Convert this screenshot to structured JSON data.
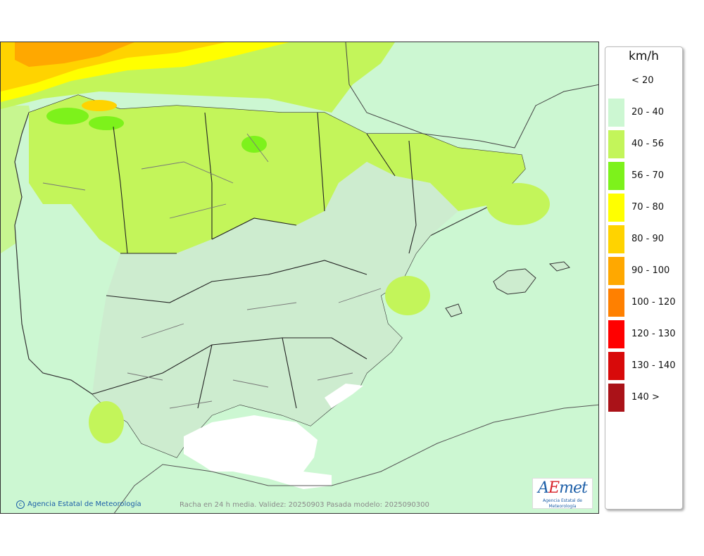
{
  "map": {
    "credit": "Agencia Estatal de Meteorología",
    "validity_text": "Racha en 24 h media. Validez: 20250903 Pasada modelo: 2025090300",
    "logo": {
      "a": "A",
      "e": "E",
      "m": "met",
      "sub": "Agencia Estatal de Meteorología"
    }
  },
  "legend": {
    "unit": "km/h",
    "classes": [
      {
        "label": "< 20",
        "color": "#ffffff"
      },
      {
        "label": "20 - 40",
        "color": "#ccf7d2"
      },
      {
        "label": "40 - 56",
        "color": "#c3f55a"
      },
      {
        "label": "56 - 70",
        "color": "#7df21b"
      },
      {
        "label": "70 - 80",
        "color": "#ffff00"
      },
      {
        "label": "80 - 90",
        "color": "#ffd300"
      },
      {
        "label": "90 - 100",
        "color": "#ffa800"
      },
      {
        "label": "100 - 120",
        "color": "#ff8000"
      },
      {
        "label": "120 - 130",
        "color": "#ff0000"
      },
      {
        "label": "130 - 140",
        "color": "#d80a0a"
      },
      {
        "label": "140 >",
        "color": "#aa1218"
      }
    ]
  }
}
